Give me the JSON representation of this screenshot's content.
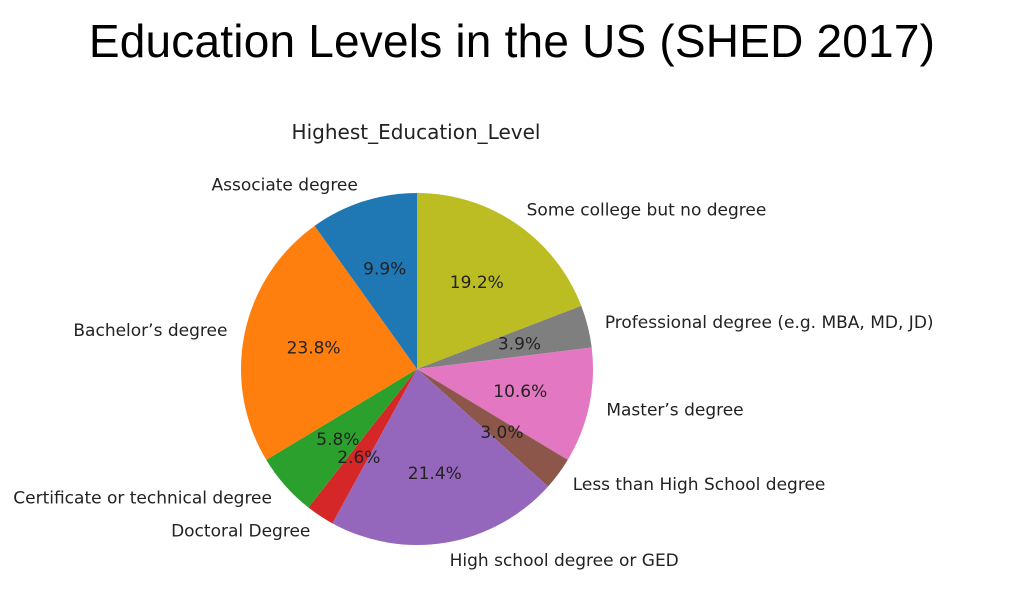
{
  "header": {
    "title": "Education Levels in the US (SHED 2017)"
  },
  "chart_data": {
    "type": "pie",
    "title": "Highest_Education_Level",
    "start_angle_deg": 90,
    "direction": "clockwise",
    "slices": [
      {
        "label": "Some college but no degree",
        "value": 19.2,
        "pct_label": "19.2%",
        "color": "#bcbd22"
      },
      {
        "label": "Professional degree (e.g. MBA, MD, JD)",
        "value": 3.9,
        "pct_label": "3.9%",
        "color": "#7f7f7f"
      },
      {
        "label": "Master’s degree",
        "value": 10.6,
        "pct_label": "10.6%",
        "color": "#e377c2"
      },
      {
        "label": "Less than High School degree",
        "value": 3.0,
        "pct_label": "3.0%",
        "color": "#8c564b"
      },
      {
        "label": "High school degree or GED",
        "value": 21.4,
        "pct_label": "21.4%",
        "color": "#9467bd"
      },
      {
        "label": "Doctoral Degree",
        "value": 2.6,
        "pct_label": "2.6%",
        "color": "#d62728"
      },
      {
        "label": "Certificate or technical degree",
        "value": 5.8,
        "pct_label": "5.8%",
        "color": "#2ca02c"
      },
      {
        "label": "Bachelor’s degree",
        "value": 23.8,
        "pct_label": "23.8%",
        "color": "#ff7f0e"
      },
      {
        "label": "Associate degree",
        "value": 9.9,
        "pct_label": "9.9%",
        "color": "#1f77b4"
      }
    ]
  }
}
